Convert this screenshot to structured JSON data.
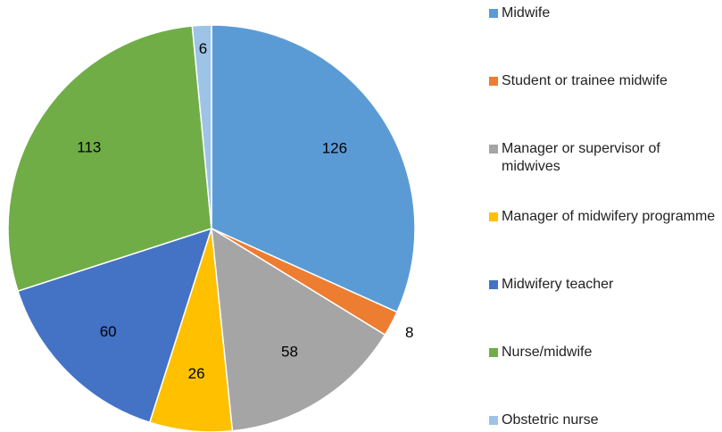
{
  "chart_data": {
    "type": "pie",
    "categories": [
      "Midwife",
      "Student or trainee midwife",
      "Manager or supervisor of midwives",
      "Manager of midwifery programme",
      "Midwifery teacher",
      "Nurse/midwife",
      "Obstetric nurse"
    ],
    "values": [
      126,
      8,
      58,
      26,
      60,
      113,
      6
    ],
    "colors": [
      "#5B9BD5",
      "#ED7D31",
      "#A5A5A5",
      "#FFC000",
      "#4472C4",
      "#70AD47",
      "#9DC3E6"
    ],
    "legend": "right"
  }
}
